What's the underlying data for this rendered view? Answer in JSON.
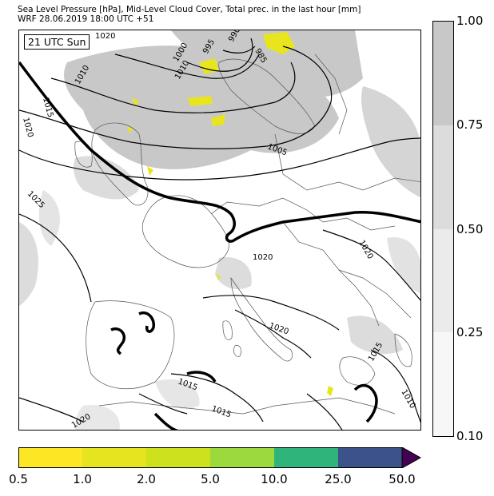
{
  "header": {
    "title_line1": "Sea Level Pressure [hPa], Mid-Level Cloud Cover, Total prec. in the last hour [mm]",
    "title_line2": "WRF 28.06.2019 18:00 UTC +51"
  },
  "map": {
    "time_label": "21 UTC Sun",
    "isobar_labels": [
      "1020",
      "1010",
      "995",
      "1000",
      "985",
      "990",
      "1015",
      "1020",
      "1010",
      "1005",
      "1025",
      "1020",
      "1020",
      "1020",
      "1015",
      "1015",
      "1015",
      "1010",
      "1020"
    ]
  },
  "cloud_cover_legend": {
    "ticks": [
      "1.00",
      "0.75",
      "0.50",
      "0.25",
      "0.10"
    ],
    "bands": [
      {
        "from": 0.75,
        "to": 1.0,
        "color": "#c8c8c8"
      },
      {
        "from": 0.5,
        "to": 0.75,
        "color": "#dcdcdc"
      },
      {
        "from": 0.25,
        "to": 0.5,
        "color": "#ebebeb"
      },
      {
        "from": 0.1,
        "to": 0.25,
        "color": "#f7f7f7"
      }
    ]
  },
  "precip_legend": {
    "ticks": [
      "0.5",
      "1.0",
      "2.0",
      "5.0",
      "10.0",
      "25.0",
      "50.0"
    ],
    "colors": [
      "#fde725",
      "#e6e31f",
      "#cde11d",
      "#9bd93c",
      "#2fb47c",
      "#3b528b",
      "#440154"
    ]
  }
}
